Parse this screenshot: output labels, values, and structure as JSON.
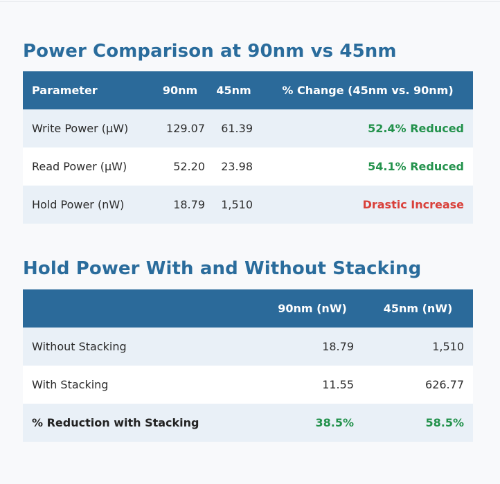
{
  "section1": {
    "title": "Power Comparison at 90nm vs 45nm",
    "headers": [
      "Parameter",
      "90nm",
      "45nm",
      "% Change (45nm vs. 90nm)"
    ],
    "rows": [
      {
        "parameter": "Write Power (µW)",
        "v90": "129.07",
        "v45": "61.39",
        "change": "52.4% Reduced",
        "status": "reduced"
      },
      {
        "parameter": "Read Power (µW)",
        "v90": "52.20",
        "v45": "23.98",
        "change": "54.1% Reduced",
        "status": "reduced"
      },
      {
        "parameter": "Hold Power (nW)",
        "v90": "18.79",
        "v45": "1,510",
        "change": "Drastic Increase",
        "status": "increased"
      }
    ]
  },
  "section2": {
    "title": "Hold Power With and Without Stacking",
    "headers": [
      "",
      "90nm (nW)",
      "45nm (nW)"
    ],
    "rows": [
      {
        "label": "Without Stacking",
        "v90": "18.79",
        "v45": "1,510"
      },
      {
        "label": "With Stacking",
        "v90": "11.55",
        "v45": "626.77"
      },
      {
        "label": "% Reduction with Stacking",
        "v90": "38.5%",
        "v45": "58.5%"
      }
    ]
  },
  "colors": {
    "heading": "#2a6c9c",
    "header_bg": "#2b6a9a",
    "row_alt_bg": "#e9f0f7",
    "reduced": "#23924c",
    "increased": "#d9403a"
  }
}
